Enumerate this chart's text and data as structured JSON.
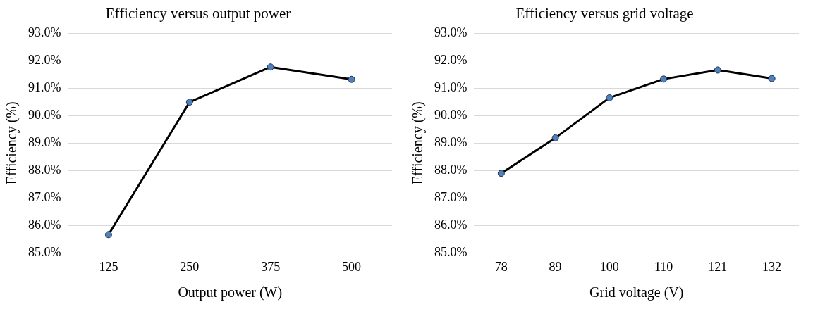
{
  "chart_data": [
    {
      "type": "line",
      "title": "Efficiency versus output power",
      "xlabel": "Output power (W)",
      "ylabel": "Efficiency (%)",
      "categories": [
        "125",
        "250",
        "375",
        "500"
      ],
      "series": [
        {
          "color": "#000000",
          "values": [
            85.67,
            90.49,
            91.77,
            91.32
          ]
        }
      ],
      "ylim": [
        85,
        93
      ],
      "yticks": [
        {
          "value": 85,
          "label": "85.0%"
        },
        {
          "value": 86,
          "label": "86.0%"
        },
        {
          "value": 87,
          "label": "87.0%"
        },
        {
          "value": 88,
          "label": "88.0%"
        },
        {
          "value": 89,
          "label": "89.0%"
        },
        {
          "value": 90,
          "label": "90.0%"
        },
        {
          "value": 91,
          "label": "91.0%"
        },
        {
          "value": 92,
          "label": "92.0%"
        },
        {
          "value": 93,
          "label": "93.0%"
        }
      ],
      "grid": "y",
      "legend": false,
      "marker": "circle",
      "line_style": "solid"
    },
    {
      "type": "line",
      "title": "Efficiency versus grid voltage",
      "xlabel": "Grid voltage (V)",
      "ylabel": "Efficiency (%)",
      "categories": [
        "78",
        "89",
        "100",
        "110",
        "121",
        "132"
      ],
      "series": [
        {
          "color": "#000000",
          "values": [
            87.9,
            89.19,
            90.65,
            91.33,
            91.66,
            91.35
          ]
        }
      ],
      "ylim": [
        85,
        93
      ],
      "yticks": [
        {
          "value": 85,
          "label": "85.0%"
        },
        {
          "value": 86,
          "label": "86.0%"
        },
        {
          "value": 87,
          "label": "87.0%"
        },
        {
          "value": 88,
          "label": "88.0%"
        },
        {
          "value": 89,
          "label": "89.0%"
        },
        {
          "value": 90,
          "label": "90.0%"
        },
        {
          "value": 91,
          "label": "91.0%"
        },
        {
          "value": 92,
          "label": "92.0%"
        },
        {
          "value": 93,
          "label": "93.0%"
        }
      ],
      "grid": "y",
      "legend": false,
      "marker": "circle",
      "line_style": "solid"
    }
  ]
}
